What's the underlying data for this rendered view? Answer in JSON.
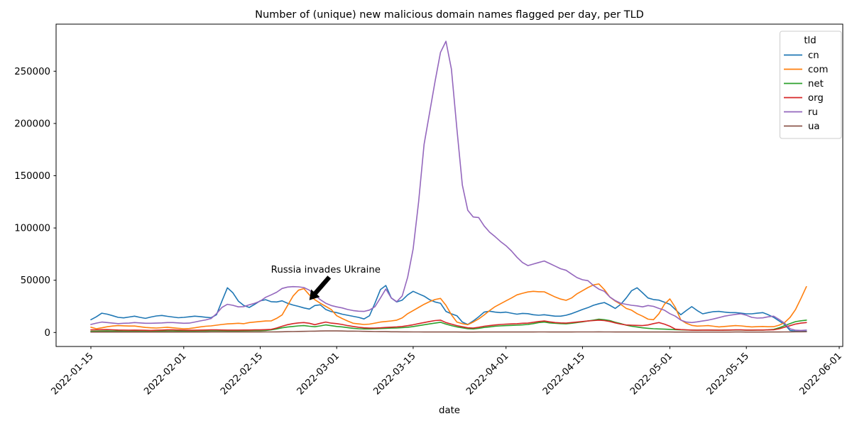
{
  "chart_data": {
    "type": "line",
    "title": "Number of (unique) new malicious domain names flagged per day, per TLD",
    "xlabel": "date",
    "ylabel": "",
    "legend_title": "tld",
    "legend_position": "upper right",
    "grid": false,
    "x_start_date": "2022-01-15",
    "x_frequency": "daily",
    "x_tick_labels": [
      "2022-01-15",
      "2022-02-01",
      "2022-02-15",
      "2022-03-01",
      "2022-03-15",
      "2022-04-01",
      "2022-04-15",
      "2022-05-01",
      "2022-05-15",
      "2022-06-01"
    ],
    "y_ticks": [
      0,
      50000,
      100000,
      150000,
      200000,
      250000
    ],
    "ylim": [
      -13400,
      295000
    ],
    "annotation": {
      "text": "Russia invades Ukraine",
      "text_date": "2022-02-27",
      "text_value": 60000,
      "tail_date": "2022-02-27",
      "tail_value": 53000,
      "tip_date": "2022-02-24",
      "tip_value": 31000,
      "arrow_color": "#000000"
    },
    "series": [
      {
        "name": "cn",
        "color": "#1f77b4",
        "values": [
          12200,
          15000,
          18500,
          17500,
          16000,
          14500,
          14000,
          14800,
          15600,
          14500,
          13500,
          14800,
          15800,
          16300,
          15500,
          14800,
          14100,
          14500,
          15000,
          15600,
          15200,
          14600,
          14100,
          17000,
          30000,
          42800,
          38000,
          30000,
          25800,
          24000,
          27000,
          30300,
          31400,
          29500,
          29200,
          30300,
          28000,
          26300,
          25000,
          23500,
          22400,
          25800,
          26500,
          22000,
          20000,
          19000,
          17500,
          16500,
          15500,
          14500,
          13000,
          16000,
          28000,
          41000,
          45000,
          33000,
          29200,
          31000,
          36000,
          39400,
          37000,
          34800,
          31400,
          29200,
          28000,
          20200,
          17900,
          16000,
          10000,
          7700,
          11000,
          15000,
          19500,
          20400,
          19500,
          19000,
          19500,
          18500,
          17500,
          18300,
          18000,
          17000,
          16500,
          17000,
          16300,
          15600,
          15600,
          16500,
          18000,
          20000,
          22000,
          23800,
          26000,
          27500,
          28700,
          26000,
          23000,
          27000,
          33000,
          40000,
          42800,
          38000,
          33000,
          31500,
          31000,
          29000,
          27000,
          22000,
          17000,
          21000,
          24700,
          21000,
          17900,
          19000,
          20000,
          20200,
          19500,
          19000,
          19000,
          18500,
          17900,
          17900,
          18500,
          19000,
          17000,
          14500,
          11000,
          7700,
          2000,
          1200,
          1000,
          1200
        ]
      },
      {
        "name": "com",
        "color": "#ff7f0e",
        "values": [
          5000,
          3600,
          4500,
          5500,
          6200,
          6600,
          6400,
          6200,
          6200,
          5500,
          4800,
          4500,
          4300,
          4600,
          5000,
          4500,
          4000,
          3600,
          3800,
          4500,
          5400,
          6000,
          6300,
          7000,
          7700,
          8200,
          8500,
          8800,
          8400,
          9500,
          10000,
          10500,
          11000,
          11100,
          13500,
          16800,
          25800,
          34800,
          40500,
          42000,
          36000,
          31400,
          28000,
          25000,
          22000,
          16000,
          13400,
          11000,
          8800,
          8200,
          7700,
          8000,
          9000,
          10000,
          10500,
          11100,
          11800,
          14000,
          18000,
          21000,
          24000,
          27000,
          29500,
          31500,
          32600,
          26000,
          17000,
          10000,
          8400,
          7500,
          10000,
          13000,
          16800,
          21000,
          24700,
          27500,
          30300,
          33000,
          36000,
          37500,
          38800,
          39400,
          39000,
          38900,
          36500,
          34000,
          32000,
          30800,
          33000,
          37000,
          40000,
          43000,
          45500,
          46500,
          41000,
          34000,
          30000,
          27000,
          23000,
          21300,
          18000,
          15600,
          12800,
          12200,
          18000,
          27000,
          32100,
          24000,
          12000,
          8800,
          6800,
          6100,
          6300,
          6600,
          6000,
          5400,
          5800,
          6200,
          6600,
          6300,
          5800,
          5400,
          5600,
          5800,
          5500,
          5600,
          7000,
          9500,
          14500,
          22000,
          32600,
          43900
        ]
      },
      {
        "name": "net",
        "color": "#2ca02c",
        "values": [
          1200,
          1300,
          1400,
          1500,
          1400,
          1400,
          1300,
          1300,
          1400,
          1300,
          1200,
          1200,
          1300,
          1400,
          1500,
          1500,
          1400,
          1400,
          1400,
          1400,
          1500,
          1500,
          1600,
          1600,
          1600,
          1500,
          1500,
          1500,
          1600,
          1700,
          1800,
          1800,
          2000,
          2500,
          3400,
          4500,
          5200,
          5800,
          6300,
          6600,
          6000,
          5500,
          6300,
          7300,
          6500,
          5800,
          5400,
          4700,
          4000,
          3600,
          3400,
          3400,
          3500,
          3800,
          4000,
          4200,
          4300,
          4600,
          5000,
          5700,
          6500,
          7400,
          8200,
          9000,
          9800,
          8000,
          6600,
          5400,
          4500,
          3600,
          3400,
          4000,
          4800,
          5400,
          6000,
          6300,
          6600,
          6800,
          7000,
          7300,
          7700,
          8500,
          9500,
          10000,
          9200,
          8800,
          8500,
          8300,
          8800,
          9500,
          10200,
          11000,
          11800,
          12700,
          12200,
          11400,
          9800,
          8500,
          7000,
          6000,
          5200,
          4500,
          4000,
          3600,
          3400,
          3200,
          3000,
          2700,
          2500,
          2400,
          2300,
          2200,
          2300,
          2300,
          2200,
          2200,
          2300,
          2300,
          2400,
          2400,
          2200,
          2200,
          2300,
          2300,
          2500,
          3000,
          4500,
          6600,
          8500,
          10400,
          11200,
          11800
        ]
      },
      {
        "name": "org",
        "color": "#d62728",
        "values": [
          2500,
          2600,
          2700,
          2800,
          2600,
          2400,
          2300,
          2200,
          2300,
          2200,
          2100,
          2000,
          2200,
          2300,
          2500,
          2500,
          2400,
          2300,
          2200,
          2200,
          2300,
          2400,
          2500,
          2500,
          2400,
          2300,
          2300,
          2300,
          2400,
          2400,
          2500,
          2500,
          2700,
          3000,
          4300,
          6000,
          7500,
          8500,
          9200,
          9500,
          8800,
          7500,
          8800,
          10000,
          9000,
          8500,
          7700,
          6600,
          5800,
          5000,
          4500,
          4300,
          4300,
          4500,
          4800,
          5100,
          5400,
          5800,
          6500,
          7400,
          8500,
          9500,
          10500,
          11400,
          11800,
          9500,
          8000,
          6600,
          5500,
          4500,
          4300,
          5000,
          6000,
          6600,
          7200,
          7700,
          8000,
          8200,
          8400,
          8800,
          9000,
          9800,
          10500,
          11000,
          10200,
          9500,
          9200,
          9000,
          9500,
          10000,
          10500,
          11000,
          11400,
          11800,
          11400,
          10500,
          9200,
          8000,
          7200,
          7000,
          6800,
          6600,
          7200,
          8500,
          9500,
          8000,
          6000,
          3200,
          2800,
          2500,
          2300,
          2200,
          2300,
          2400,
          2300,
          2200,
          2300,
          2400,
          2500,
          2500,
          2300,
          2300,
          2400,
          2400,
          2500,
          2600,
          3500,
          5000,
          6500,
          8100,
          9000,
          9500
        ]
      },
      {
        "name": "ru",
        "color": "#9467bd",
        "values": [
          7700,
          9000,
          10000,
          9500,
          9000,
          8500,
          8800,
          9000,
          9500,
          9200,
          8800,
          8800,
          9000,
          9200,
          9500,
          9500,
          9200,
          8800,
          9000,
          10000,
          11100,
          12000,
          13400,
          18000,
          24000,
          27000,
          26000,
          24500,
          24700,
          26500,
          28000,
          30000,
          33700,
          36000,
          38500,
          42100,
          43500,
          43900,
          43700,
          43000,
          40500,
          36000,
          31400,
          28000,
          25800,
          24500,
          23500,
          22000,
          21000,
          20400,
          20200,
          21500,
          24700,
          33000,
          41600,
          33000,
          29500,
          35000,
          53000,
          80000,
          125000,
          180000,
          210000,
          240000,
          268000,
          278700,
          252000,
          195000,
          141000,
          117000,
          110500,
          110000,
          102000,
          96000,
          91700,
          87000,
          83000,
          78000,
          72000,
          67000,
          64000,
          65500,
          67000,
          68400,
          66000,
          63500,
          61000,
          59500,
          56000,
          52500,
          50500,
          49600,
          45000,
          41500,
          39400,
          34000,
          30500,
          28000,
          27000,
          26000,
          25500,
          24500,
          25800,
          25000,
          23000,
          21300,
          18000,
          15600,
          11800,
          10000,
          9500,
          10200,
          11000,
          11800,
          13000,
          14300,
          15600,
          16500,
          17300,
          17900,
          16500,
          14500,
          13800,
          14000,
          15000,
          15600,
          12500,
          8800,
          3500,
          2200,
          2000,
          2300
        ]
      },
      {
        "name": "ua",
        "color": "#8c564b",
        "values": [
          400,
          400,
          450,
          400,
          400,
          450,
          400,
          400,
          450,
          400,
          400,
          400,
          450,
          400,
          450,
          400,
          400,
          400,
          450,
          400,
          450,
          400,
          450,
          450,
          500,
          500,
          450,
          450,
          500,
          500,
          500,
          500,
          550,
          550,
          600,
          700,
          800,
          900,
          1000,
          1100,
          1200,
          1300,
          1400,
          1500,
          1500,
          1500,
          1400,
          1300,
          1300,
          1200,
          1100,
          1000,
          900,
          800,
          800,
          700,
          700,
          600,
          600,
          550,
          550,
          500,
          500,
          500,
          500,
          500,
          450,
          450,
          400,
          400,
          400,
          450,
          450,
          500,
          500,
          500,
          500,
          500,
          450,
          450,
          500,
          500,
          550,
          550,
          500,
          500,
          500,
          500,
          500,
          550,
          550,
          550,
          550,
          600,
          550,
          550,
          500,
          500,
          450,
          450,
          450,
          450,
          450,
          500,
          500,
          450,
          450,
          400,
          400,
          400,
          400,
          400,
          400,
          400,
          400,
          400,
          400,
          400,
          450,
          450,
          400,
          400,
          400,
          400,
          450,
          450,
          500,
          550,
          600,
          650,
          700,
          750
        ]
      }
    ]
  }
}
